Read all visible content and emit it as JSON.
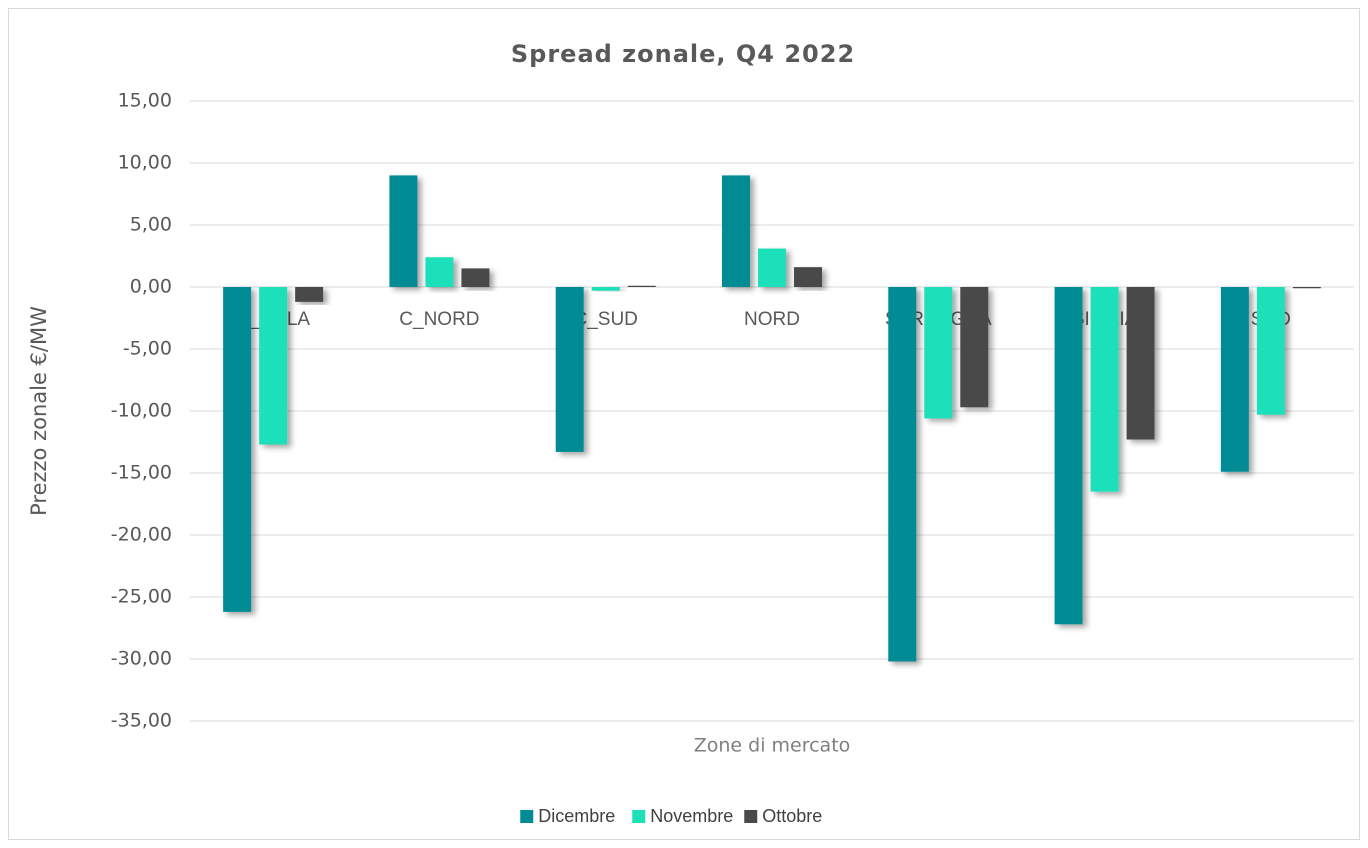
{
  "chart_data": {
    "type": "bar",
    "title": "Spread zonale, Q4 2022",
    "y_label": "Prezzo zonale €/MW",
    "x_label": "Zone di mercato",
    "categories": [
      "C_CALA",
      "C_NORD",
      "C_SUD",
      "NORD",
      "SARDEGNA",
      "SICILIA",
      "SUD"
    ],
    "series": [
      {
        "name": "Dicembre",
        "color": "#008b95",
        "values": [
          -26.2,
          9.0,
          -13.3,
          9.0,
          -30.2,
          -27.2,
          -14.9
        ]
      },
      {
        "name": "Novembre",
        "color": "#1de0b9",
        "values": [
          -12.7,
          2.4,
          -0.3,
          3.1,
          -10.6,
          -16.5,
          -10.3
        ]
      },
      {
        "name": "Ottobre",
        "color": "#4a4a4a",
        "values": [
          -1.2,
          1.5,
          0.1,
          1.6,
          -9.7,
          -12.3,
          -0.1
        ]
      }
    ],
    "ylim": [
      -35,
      15
    ],
    "yticks": [
      {
        "value": 15,
        "label": "15,00"
      },
      {
        "value": 10,
        "label": "10,00"
      },
      {
        "value": 5,
        "label": "5,00"
      },
      {
        "value": 0,
        "label": "0,00"
      },
      {
        "value": -5,
        "label": "-5,00"
      },
      {
        "value": -10,
        "label": "-10,00"
      },
      {
        "value": -15,
        "label": "-15,00"
      },
      {
        "value": -20,
        "label": "-20,00"
      },
      {
        "value": -25,
        "label": "-25,00"
      },
      {
        "value": -30,
        "label": "-30,00"
      },
      {
        "value": -35,
        "label": "-35,00"
      }
    ],
    "grid": true,
    "legend": "bottom"
  }
}
